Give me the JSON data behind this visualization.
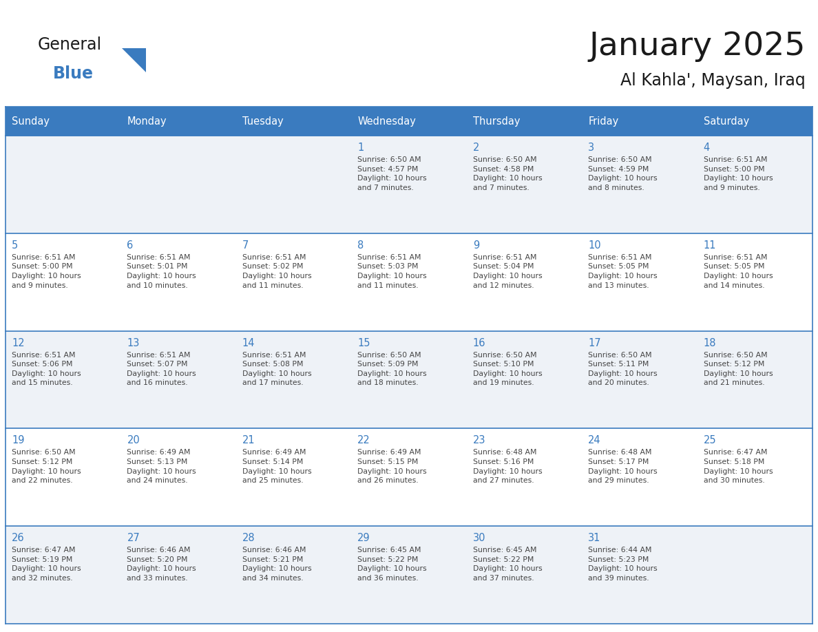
{
  "title": "January 2025",
  "subtitle": "Al Kahla', Maysan, Iraq",
  "header_bg_color": "#3a7bbf",
  "header_text_color": "#ffffff",
  "border_color": "#3a7bbf",
  "text_color": "#444444",
  "day_number_color": "#3a7bbf",
  "day_headers": [
    "Sunday",
    "Monday",
    "Tuesday",
    "Wednesday",
    "Thursday",
    "Friday",
    "Saturday"
  ],
  "row0_bg": "#f0f4f8",
  "row1_bg": "#ffffff",
  "weeks": [
    [
      {
        "day": "",
        "text": ""
      },
      {
        "day": "",
        "text": ""
      },
      {
        "day": "",
        "text": ""
      },
      {
        "day": "1",
        "text": "Sunrise: 6:50 AM\nSunset: 4:57 PM\nDaylight: 10 hours\nand 7 minutes."
      },
      {
        "day": "2",
        "text": "Sunrise: 6:50 AM\nSunset: 4:58 PM\nDaylight: 10 hours\nand 7 minutes."
      },
      {
        "day": "3",
        "text": "Sunrise: 6:50 AM\nSunset: 4:59 PM\nDaylight: 10 hours\nand 8 minutes."
      },
      {
        "day": "4",
        "text": "Sunrise: 6:51 AM\nSunset: 5:00 PM\nDaylight: 10 hours\nand 9 minutes."
      }
    ],
    [
      {
        "day": "5",
        "text": "Sunrise: 6:51 AM\nSunset: 5:00 PM\nDaylight: 10 hours\nand 9 minutes."
      },
      {
        "day": "6",
        "text": "Sunrise: 6:51 AM\nSunset: 5:01 PM\nDaylight: 10 hours\nand 10 minutes."
      },
      {
        "day": "7",
        "text": "Sunrise: 6:51 AM\nSunset: 5:02 PM\nDaylight: 10 hours\nand 11 minutes."
      },
      {
        "day": "8",
        "text": "Sunrise: 6:51 AM\nSunset: 5:03 PM\nDaylight: 10 hours\nand 11 minutes."
      },
      {
        "day": "9",
        "text": "Sunrise: 6:51 AM\nSunset: 5:04 PM\nDaylight: 10 hours\nand 12 minutes."
      },
      {
        "day": "10",
        "text": "Sunrise: 6:51 AM\nSunset: 5:05 PM\nDaylight: 10 hours\nand 13 minutes."
      },
      {
        "day": "11",
        "text": "Sunrise: 6:51 AM\nSunset: 5:05 PM\nDaylight: 10 hours\nand 14 minutes."
      }
    ],
    [
      {
        "day": "12",
        "text": "Sunrise: 6:51 AM\nSunset: 5:06 PM\nDaylight: 10 hours\nand 15 minutes."
      },
      {
        "day": "13",
        "text": "Sunrise: 6:51 AM\nSunset: 5:07 PM\nDaylight: 10 hours\nand 16 minutes."
      },
      {
        "day": "14",
        "text": "Sunrise: 6:51 AM\nSunset: 5:08 PM\nDaylight: 10 hours\nand 17 minutes."
      },
      {
        "day": "15",
        "text": "Sunrise: 6:50 AM\nSunset: 5:09 PM\nDaylight: 10 hours\nand 18 minutes."
      },
      {
        "day": "16",
        "text": "Sunrise: 6:50 AM\nSunset: 5:10 PM\nDaylight: 10 hours\nand 19 minutes."
      },
      {
        "day": "17",
        "text": "Sunrise: 6:50 AM\nSunset: 5:11 PM\nDaylight: 10 hours\nand 20 minutes."
      },
      {
        "day": "18",
        "text": "Sunrise: 6:50 AM\nSunset: 5:12 PM\nDaylight: 10 hours\nand 21 minutes."
      }
    ],
    [
      {
        "day": "19",
        "text": "Sunrise: 6:50 AM\nSunset: 5:12 PM\nDaylight: 10 hours\nand 22 minutes."
      },
      {
        "day": "20",
        "text": "Sunrise: 6:49 AM\nSunset: 5:13 PM\nDaylight: 10 hours\nand 24 minutes."
      },
      {
        "day": "21",
        "text": "Sunrise: 6:49 AM\nSunset: 5:14 PM\nDaylight: 10 hours\nand 25 minutes."
      },
      {
        "day": "22",
        "text": "Sunrise: 6:49 AM\nSunset: 5:15 PM\nDaylight: 10 hours\nand 26 minutes."
      },
      {
        "day": "23",
        "text": "Sunrise: 6:48 AM\nSunset: 5:16 PM\nDaylight: 10 hours\nand 27 minutes."
      },
      {
        "day": "24",
        "text": "Sunrise: 6:48 AM\nSunset: 5:17 PM\nDaylight: 10 hours\nand 29 minutes."
      },
      {
        "day": "25",
        "text": "Sunrise: 6:47 AM\nSunset: 5:18 PM\nDaylight: 10 hours\nand 30 minutes."
      }
    ],
    [
      {
        "day": "26",
        "text": "Sunrise: 6:47 AM\nSunset: 5:19 PM\nDaylight: 10 hours\nand 32 minutes."
      },
      {
        "day": "27",
        "text": "Sunrise: 6:46 AM\nSunset: 5:20 PM\nDaylight: 10 hours\nand 33 minutes."
      },
      {
        "day": "28",
        "text": "Sunrise: 6:46 AM\nSunset: 5:21 PM\nDaylight: 10 hours\nand 34 minutes."
      },
      {
        "day": "29",
        "text": "Sunrise: 6:45 AM\nSunset: 5:22 PM\nDaylight: 10 hours\nand 36 minutes."
      },
      {
        "day": "30",
        "text": "Sunrise: 6:45 AM\nSunset: 5:22 PM\nDaylight: 10 hours\nand 37 minutes."
      },
      {
        "day": "31",
        "text": "Sunrise: 6:44 AM\nSunset: 5:23 PM\nDaylight: 10 hours\nand 39 minutes."
      },
      {
        "day": "",
        "text": ""
      }
    ]
  ]
}
